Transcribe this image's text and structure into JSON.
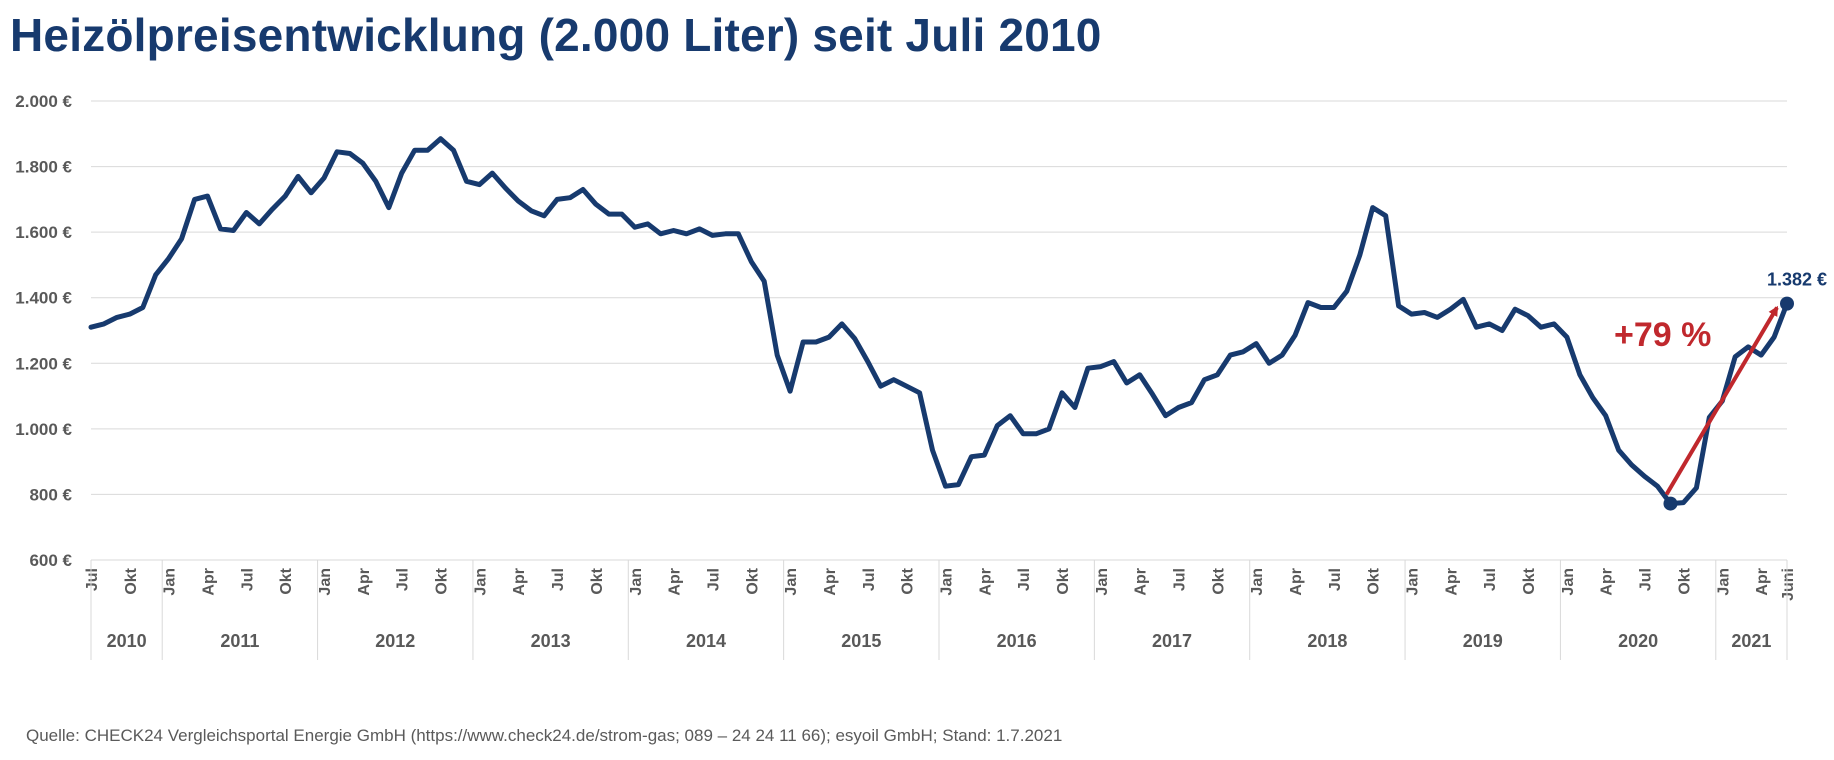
{
  "title": "Heizölpreisentwicklung (2.000 Liter) seit Juli 2010",
  "source": "Quelle: CHECK24 Vergleichsportal Energie GmbH (https://www.check24.de/strom-gas; 089 – 24 24 11 66); esyoil GmbH; Stand: 1.7.2021",
  "colors": {
    "line": "#173a6e",
    "arrow": "#c0282d",
    "grid": "#d9d9d9",
    "axis_text": "#595959"
  },
  "chart_data": {
    "type": "line",
    "title": "Heizölpreisentwicklung (2.000 Liter) seit Juli 2010",
    "ylim": [
      600,
      2000
    ],
    "y_ticks": [
      600,
      800,
      1000,
      1200,
      1400,
      1600,
      1800,
      2000
    ],
    "y_tick_labels": [
      "600 €",
      "800 €",
      "1.000 €",
      "1.200 €",
      "1.400 €",
      "1.600 €",
      "1.800 €",
      "2.000 €"
    ],
    "grid": true,
    "month_ticks": [
      {
        "label": "Jul",
        "date": "2010-07"
      },
      {
        "label": "Okt",
        "date": "2010-10"
      },
      {
        "label": "Jan",
        "date": "2011-01"
      },
      {
        "label": "Apr",
        "date": "2011-04"
      },
      {
        "label": "Jul",
        "date": "2011-07"
      },
      {
        "label": "Okt",
        "date": "2011-10"
      },
      {
        "label": "Jan",
        "date": "2012-01"
      },
      {
        "label": "Apr",
        "date": "2012-04"
      },
      {
        "label": "Jul",
        "date": "2012-07"
      },
      {
        "label": "Okt",
        "date": "2012-10"
      },
      {
        "label": "Jan",
        "date": "2013-01"
      },
      {
        "label": "Apr",
        "date": "2013-04"
      },
      {
        "label": "Jul",
        "date": "2013-07"
      },
      {
        "label": "Okt",
        "date": "2013-10"
      },
      {
        "label": "Jan",
        "date": "2014-01"
      },
      {
        "label": "Apr",
        "date": "2014-04"
      },
      {
        "label": "Jul",
        "date": "2014-07"
      },
      {
        "label": "Okt",
        "date": "2014-10"
      },
      {
        "label": "Jan",
        "date": "2015-01"
      },
      {
        "label": "Apr",
        "date": "2015-04"
      },
      {
        "label": "Jul",
        "date": "2015-07"
      },
      {
        "label": "Okt",
        "date": "2015-10"
      },
      {
        "label": "Jan",
        "date": "2016-01"
      },
      {
        "label": "Apr",
        "date": "2016-04"
      },
      {
        "label": "Jul",
        "date": "2016-07"
      },
      {
        "label": "Okt",
        "date": "2016-10"
      },
      {
        "label": "Jan",
        "date": "2017-01"
      },
      {
        "label": "Apr",
        "date": "2017-04"
      },
      {
        "label": "Jul",
        "date": "2017-07"
      },
      {
        "label": "Okt",
        "date": "2017-10"
      },
      {
        "label": "Jan",
        "date": "2018-01"
      },
      {
        "label": "Apr",
        "date": "2018-04"
      },
      {
        "label": "Jul",
        "date": "2018-07"
      },
      {
        "label": "Okt",
        "date": "2018-10"
      },
      {
        "label": "Jan",
        "date": "2019-01"
      },
      {
        "label": "Apr",
        "date": "2019-04"
      },
      {
        "label": "Jul",
        "date": "2019-07"
      },
      {
        "label": "Okt",
        "date": "2019-10"
      },
      {
        "label": "Jan",
        "date": "2020-01"
      },
      {
        "label": "Apr",
        "date": "2020-04"
      },
      {
        "label": "Jul",
        "date": "2020-07"
      },
      {
        "label": "Okt",
        "date": "2020-10"
      },
      {
        "label": "Jan",
        "date": "2021-01"
      },
      {
        "label": "Apr",
        "date": "2021-04"
      },
      {
        "label": "Juni",
        "date": "2021-06"
      }
    ],
    "year_groups": [
      {
        "label": "2010",
        "from": "2010-07",
        "to": "2010-12"
      },
      {
        "label": "2011",
        "from": "2011-01",
        "to": "2011-12"
      },
      {
        "label": "2012",
        "from": "2012-01",
        "to": "2012-12"
      },
      {
        "label": "2013",
        "from": "2013-01",
        "to": "2013-12"
      },
      {
        "label": "2014",
        "from": "2014-01",
        "to": "2014-12"
      },
      {
        "label": "2015",
        "from": "2015-01",
        "to": "2015-12"
      },
      {
        "label": "2016",
        "from": "2016-01",
        "to": "2016-12"
      },
      {
        "label": "2017",
        "from": "2017-01",
        "to": "2017-12"
      },
      {
        "label": "2018",
        "from": "2018-01",
        "to": "2018-12"
      },
      {
        "label": "2019",
        "from": "2019-01",
        "to": "2019-12"
      },
      {
        "label": "2020",
        "from": "2020-01",
        "to": "2020-12"
      },
      {
        "label": "2021",
        "from": "2021-01",
        "to": "2021-06"
      }
    ],
    "series": [
      {
        "x": [
          "2010-07",
          "2010-08",
          "2010-09",
          "2010-10",
          "2010-11",
          "2010-12",
          "2011-01",
          "2011-02",
          "2011-03",
          "2011-04",
          "2011-05",
          "2011-06",
          "2011-07",
          "2011-08",
          "2011-09",
          "2011-10",
          "2011-11",
          "2011-12",
          "2012-01",
          "2012-02",
          "2012-03",
          "2012-04",
          "2012-05",
          "2012-06",
          "2012-07",
          "2012-08",
          "2012-09",
          "2012-10",
          "2012-11",
          "2012-12",
          "2013-01",
          "2013-02",
          "2013-03",
          "2013-04",
          "2013-05",
          "2013-06",
          "2013-07",
          "2013-08",
          "2013-09",
          "2013-10",
          "2013-11",
          "2013-12",
          "2014-01",
          "2014-02",
          "2014-03",
          "2014-04",
          "2014-05",
          "2014-06",
          "2014-07",
          "2014-08",
          "2014-09",
          "2014-10",
          "2014-11",
          "2014-12",
          "2015-01",
          "2015-02",
          "2015-03",
          "2015-04",
          "2015-05",
          "2015-06",
          "2015-07",
          "2015-08",
          "2015-09",
          "2015-10",
          "2015-11",
          "2015-12",
          "2016-01",
          "2016-02",
          "2016-03",
          "2016-04",
          "2016-05",
          "2016-06",
          "2016-07",
          "2016-08",
          "2016-09",
          "2016-10",
          "2016-11",
          "2016-12",
          "2017-01",
          "2017-02",
          "2017-03",
          "2017-04",
          "2017-05",
          "2017-06",
          "2017-07",
          "2017-08",
          "2017-09",
          "2017-10",
          "2017-11",
          "2017-12",
          "2018-01",
          "2018-02",
          "2018-03",
          "2018-04",
          "2018-05",
          "2018-06",
          "2018-07",
          "2018-08",
          "2018-09",
          "2018-10",
          "2018-11",
          "2018-12",
          "2019-01",
          "2019-02",
          "2019-03",
          "2019-04",
          "2019-05",
          "2019-06",
          "2019-07",
          "2019-08",
          "2019-09",
          "2019-10",
          "2019-11",
          "2019-12",
          "2020-01",
          "2020-02",
          "2020-03",
          "2020-04",
          "2020-05",
          "2020-06",
          "2020-07",
          "2020-08",
          "2020-09",
          "2020-10",
          "2020-11",
          "2020-12",
          "2021-01",
          "2021-02",
          "2021-03",
          "2021-04",
          "2021-05",
          "2021-06"
        ],
        "values": [
          1310,
          1320,
          1340,
          1350,
          1370,
          1470,
          1520,
          1580,
          1700,
          1710,
          1610,
          1605,
          1660,
          1625,
          1670,
          1710,
          1770,
          1720,
          1765,
          1845,
          1840,
          1810,
          1755,
          1675,
          1780,
          1850,
          1850,
          1885,
          1850,
          1755,
          1745,
          1780,
          1735,
          1695,
          1665,
          1650,
          1700,
          1705,
          1730,
          1685,
          1655,
          1655,
          1615,
          1625,
          1595,
          1605,
          1595,
          1610,
          1590,
          1595,
          1595,
          1510,
          1450,
          1225,
          1115,
          1265,
          1265,
          1280,
          1320,
          1275,
          1205,
          1130,
          1150,
          1130,
          1110,
          935,
          825,
          830,
          915,
          920,
          1010,
          1040,
          985,
          985,
          1000,
          1110,
          1065,
          1185,
          1190,
          1205,
          1140,
          1165,
          1105,
          1040,
          1065,
          1080,
          1150,
          1165,
          1225,
          1235,
          1260,
          1200,
          1225,
          1285,
          1385,
          1370,
          1370,
          1420,
          1530,
          1675,
          1650,
          1375,
          1350,
          1355,
          1340,
          1365,
          1395,
          1310,
          1320,
          1300,
          1365,
          1345,
          1310,
          1320,
          1280,
          1165,
          1095,
          1040,
          935,
          890,
          855,
          825,
          772,
          775,
          820,
          1035,
          1085,
          1220,
          1250,
          1225,
          1280,
          1382
        ]
      }
    ],
    "markers": [
      {
        "date": "2020-09",
        "value": 772
      },
      {
        "date": "2021-06",
        "value": 1382
      }
    ],
    "annotations": {
      "end_value_label": "1.382 €",
      "change_label": "+79 %",
      "arrow": {
        "from": {
          "date": "2020-09",
          "value": 800
        },
        "to": {
          "date": "2021-06",
          "value": 1370
        }
      }
    }
  }
}
